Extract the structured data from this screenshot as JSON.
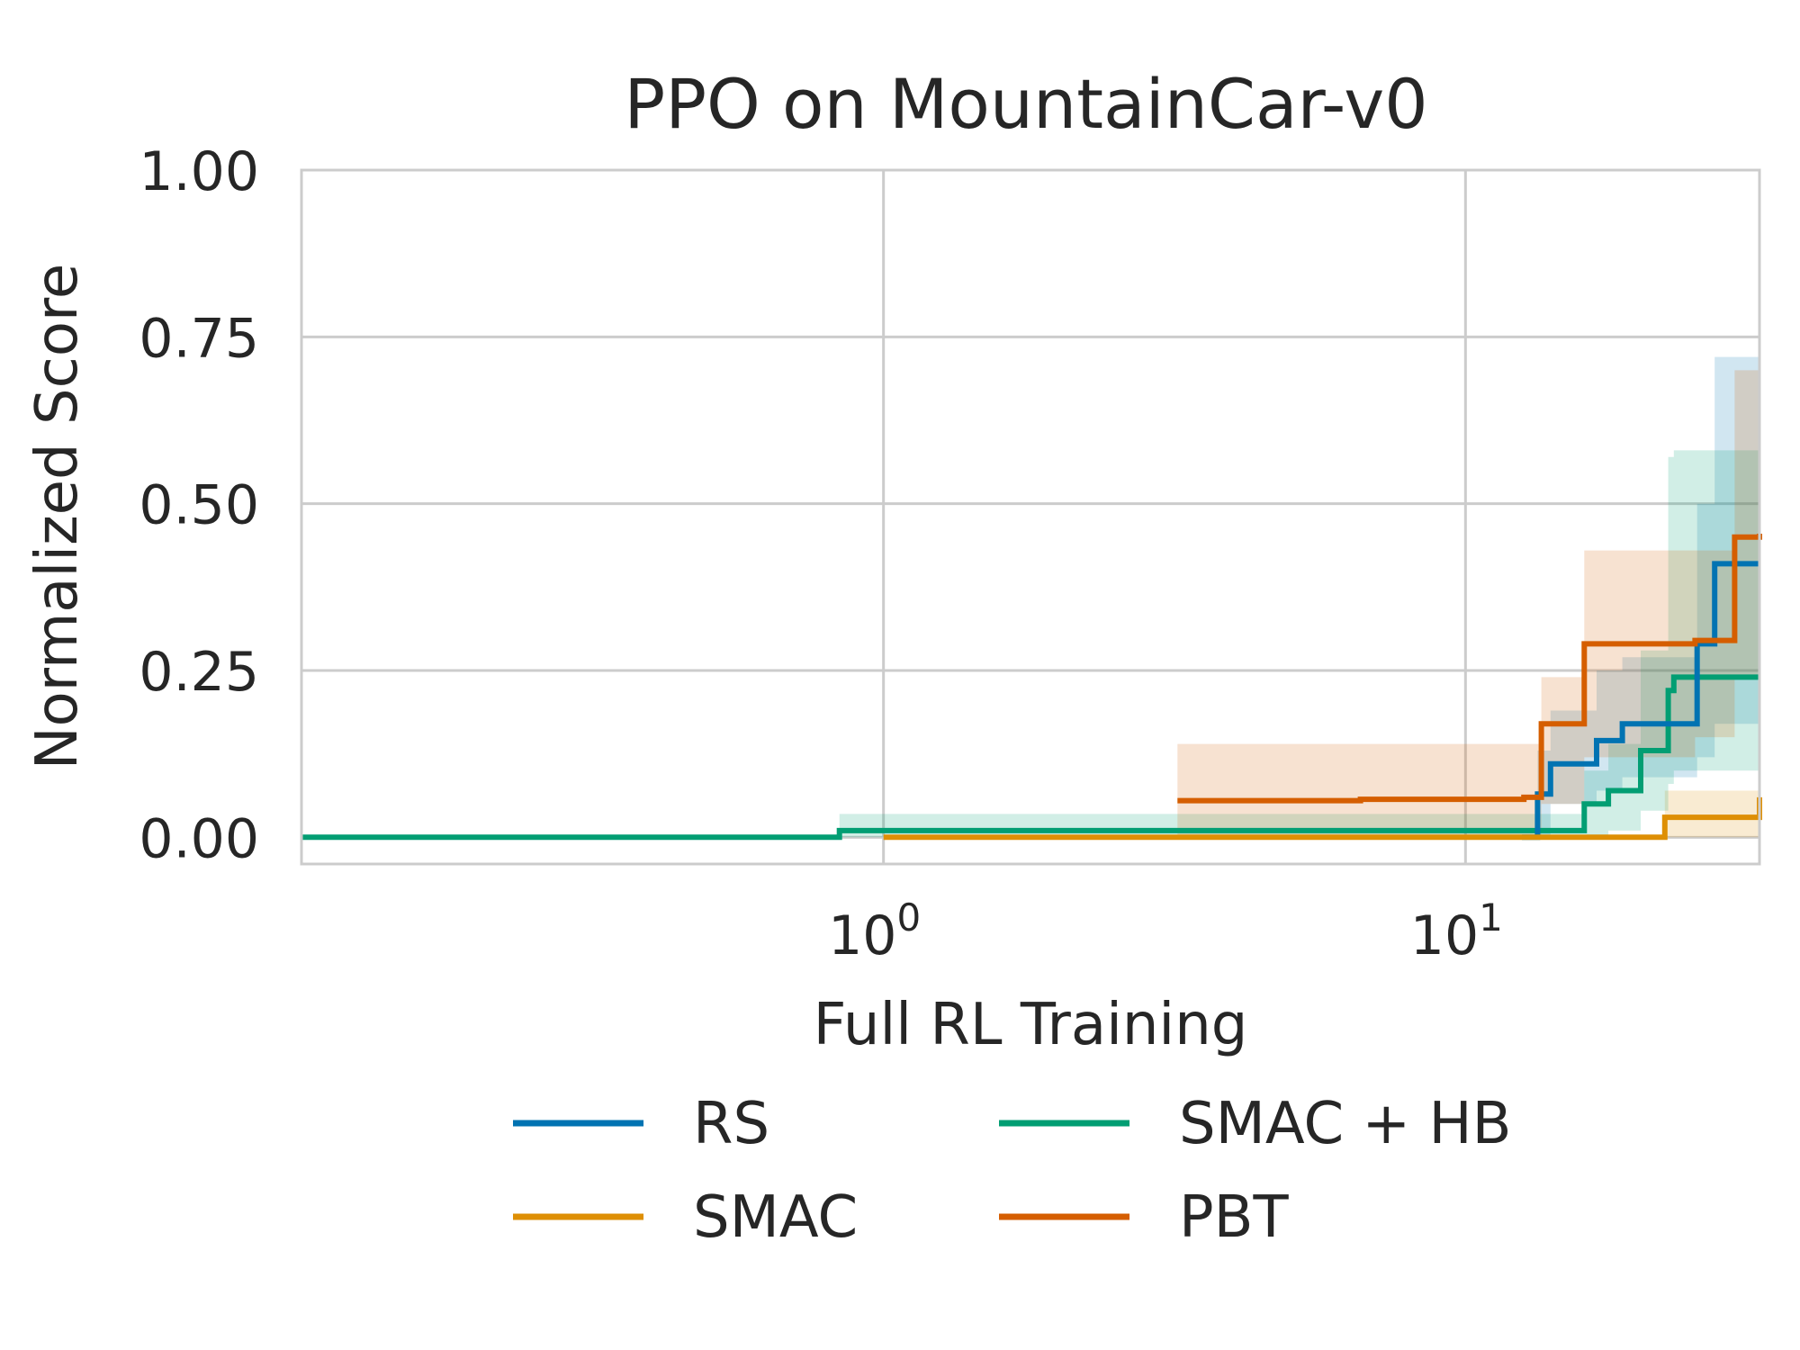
{
  "chart_data": {
    "type": "line",
    "title": "PPO on MountainCar-v0",
    "xlabel": "Full RL Training",
    "ylabel": "Normalized Score",
    "xscale": "log",
    "xlim": [
      0.1,
      32
    ],
    "ylim": [
      -0.04,
      1.0
    ],
    "yticks": [
      {
        "value": 0.0,
        "label": "0.00"
      },
      {
        "value": 0.25,
        "label": "0.25"
      },
      {
        "value": 0.5,
        "label": "0.50"
      },
      {
        "value": 0.75,
        "label": "0.75"
      },
      {
        "value": 1.0,
        "label": "1.00"
      }
    ],
    "xticks": [
      {
        "value": 1,
        "base": "10",
        "exp": "0"
      },
      {
        "value": 10,
        "base": "10",
        "exp": "1"
      }
    ],
    "grid": true,
    "legend": {
      "position": "bottom-center",
      "columns": 2
    },
    "series": [
      {
        "name": "RS",
        "color": "#0173b2",
        "x": [
          12.5,
          13.3,
          14.0,
          16.8,
          18.6,
          25.0,
          26.8,
          32.0
        ],
        "y": [
          0.0,
          0.065,
          0.11,
          0.145,
          0.17,
          0.29,
          0.41,
          0.41
        ],
        "lower": [
          0.0,
          0.0,
          0.05,
          0.07,
          0.09,
          0.12,
          0.17,
          0.2
        ],
        "upper": [
          0.0,
          0.13,
          0.19,
          0.25,
          0.27,
          0.5,
          0.72,
          0.72
        ]
      },
      {
        "name": "SMAC",
        "color": "#de8f05",
        "x": [
          1.0,
          21.0,
          22.0,
          32.0
        ],
        "y": [
          0.0,
          0.0,
          0.03,
          0.06
        ],
        "lower": [
          0.0,
          0.0,
          0.0,
          0.0
        ],
        "upper": [
          0.0,
          0.0,
          0.07,
          0.12
        ]
      },
      {
        "name": "SMAC + HB",
        "color": "#029e73",
        "x": [
          0.1,
          0.84,
          16.0,
          17.6,
          20.0,
          22.3,
          22.8,
          32.0
        ],
        "y": [
          0.0,
          0.01,
          0.05,
          0.07,
          0.13,
          0.22,
          0.24,
          0.24
        ],
        "lower": [
          0.0,
          0.0,
          0.0,
          0.01,
          0.04,
          0.08,
          0.1,
          0.1
        ],
        "upper": [
          0.0,
          0.035,
          0.1,
          0.14,
          0.28,
          0.57,
          0.58,
          0.58
        ]
      },
      {
        "name": "PBT",
        "color": "#d55e00",
        "x": [
          3.2,
          6.6,
          12.6,
          13.5,
          16.0,
          24.8,
          29.0,
          32.0
        ],
        "y": [
          0.055,
          0.057,
          0.06,
          0.17,
          0.29,
          0.295,
          0.45,
          0.455
        ],
        "lower": [
          0.0,
          0.0,
          0.0,
          0.05,
          0.12,
          0.15,
          0.24,
          0.28
        ],
        "upper": [
          0.14,
          0.14,
          0.14,
          0.24,
          0.43,
          0.43,
          0.7,
          0.7
        ]
      }
    ]
  }
}
